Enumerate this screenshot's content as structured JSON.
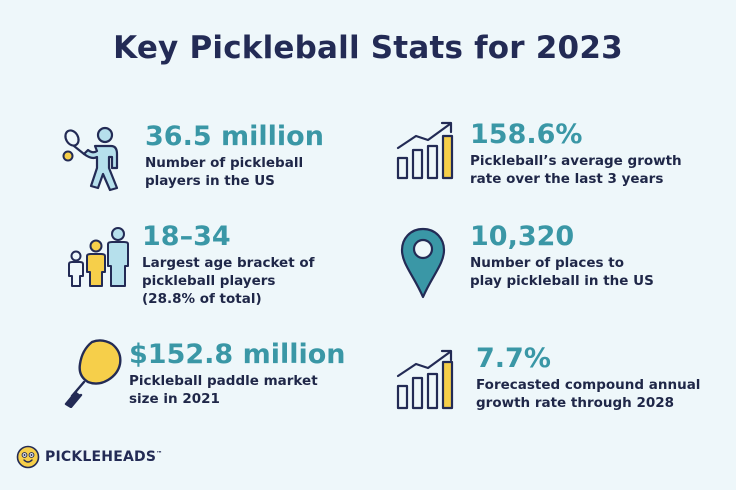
{
  "title": "Key Pickleball Stats for 2023",
  "stats": [
    {
      "value": "36.5 million",
      "desc_lines": [
        "Number of pickleball",
        "players in the US"
      ]
    },
    {
      "value": "158.6%",
      "desc_lines": [
        "Pickleball’s average growth",
        "rate over the last 3 years"
      ]
    },
    {
      "value": "18–34",
      "desc_lines": [
        "Largest age bracket of",
        "pickleball players",
        "(28.8% of total)"
      ]
    },
    {
      "value": "10,320",
      "desc_lines": [
        "Number of places to",
        "play pickleball in the US"
      ]
    },
    {
      "value": "$152.8 million",
      "desc_lines": [
        "Pickleball paddle market",
        "size in 2021"
      ]
    },
    {
      "value": "7.7%",
      "desc_lines": [
        "Forecasted compound annual",
        "growth rate through 2028"
      ]
    }
  ],
  "logo": {
    "name": "PICKLEHEADS",
    "tm": "™"
  },
  "colors": {
    "teal": "#3a97a6",
    "navy": "#232b55",
    "yellow": "#f6cf4a",
    "light_blue": "#b6e0ec",
    "background": "#eef7fa"
  }
}
